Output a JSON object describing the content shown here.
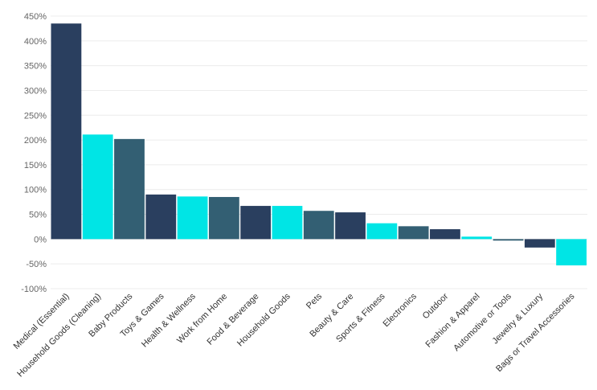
{
  "chart_data": {
    "type": "bar",
    "title": "",
    "xlabel": "",
    "ylabel": "",
    "ylim": [
      -100,
      450
    ],
    "yticks": [
      -100,
      -50,
      0,
      50,
      100,
      150,
      200,
      250,
      300,
      350,
      400,
      450
    ],
    "ytick_labels": [
      "-100%",
      "-50%",
      "0%",
      "50%",
      "100%",
      "150%",
      "200%",
      "250%",
      "300%",
      "350%",
      "400%",
      "450%"
    ],
    "grid": true,
    "legend": "none",
    "categories": [
      "Medical (Essential)",
      "Household Goods (Cleaning)",
      "Baby Products",
      "Toys & Games",
      "Health & Wellness",
      "Work from Home",
      "Food & Beverage",
      "Household Goods",
      "Pets",
      "Beauty & Care",
      "Sports & Fitness",
      "Electronics",
      "Outdoor",
      "Fashion & Apparel",
      "Automotive or Tools",
      "Jewelry & Luxury",
      "Bags or Travel Accessories"
    ],
    "values": [
      435,
      211,
      202,
      90,
      86,
      85,
      67,
      67,
      57,
      54,
      32,
      26,
      20,
      5,
      -3,
      -17,
      -53
    ],
    "colors": [
      "#2a3f5f",
      "#00e5e5",
      "#335f73",
      "#2a3f5f",
      "#00e5e5",
      "#335f73",
      "#2a3f5f",
      "#00e5e5",
      "#335f73",
      "#2a3f5f",
      "#00e5e5",
      "#335f73",
      "#2a3f5f",
      "#00e5e5",
      "#335f73",
      "#2a3f5f",
      "#00e5e5"
    ]
  }
}
